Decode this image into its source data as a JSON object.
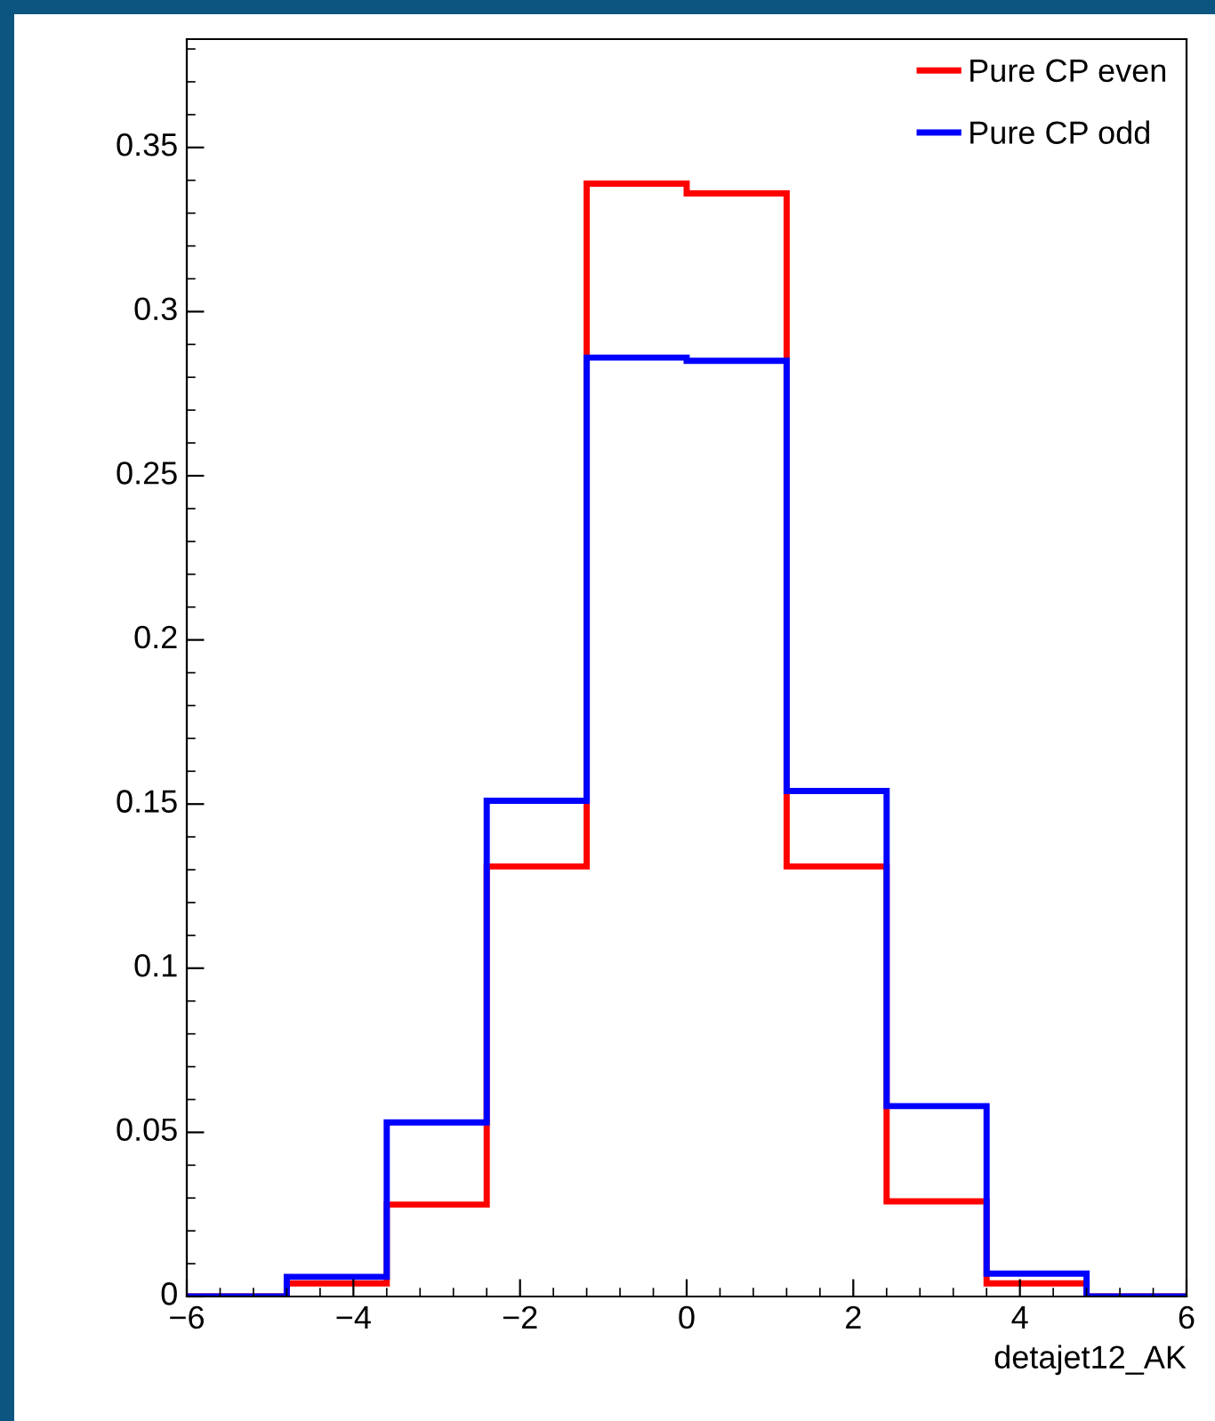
{
  "chart_data": {
    "type": "histogram",
    "xlabel": "detajet12_AK",
    "bins": [
      -6,
      -4.8,
      -3.6,
      -2.4,
      -1.2,
      0,
      1.2,
      2.4,
      3.6,
      4.8,
      6
    ],
    "series": [
      {
        "name": "Pure CP even",
        "color": "#ff0000",
        "values": [
          0,
          0.004,
          0.028,
          0.131,
          0.339,
          0.336,
          0.131,
          0.029,
          0.004,
          0
        ]
      },
      {
        "name": "Pure CP odd",
        "color": "#0000ff",
        "values": [
          0,
          0.006,
          0.053,
          0.151,
          0.286,
          0.285,
          0.154,
          0.058,
          0.007,
          0
        ]
      }
    ],
    "xlim": [
      -6,
      6
    ],
    "xticks": [
      {
        "value": -6,
        "label": "−6"
      },
      {
        "value": -4,
        "label": "−4"
      },
      {
        "value": -2,
        "label": "−2"
      },
      0,
      2,
      4,
      6
    ],
    "ylim": [
      0,
      0.383
    ],
    "yticks": [
      0,
      0.05,
      0.1,
      0.15,
      0.2,
      0.25,
      0.3,
      0.35
    ],
    "legend": "top right",
    "grid": false
  }
}
